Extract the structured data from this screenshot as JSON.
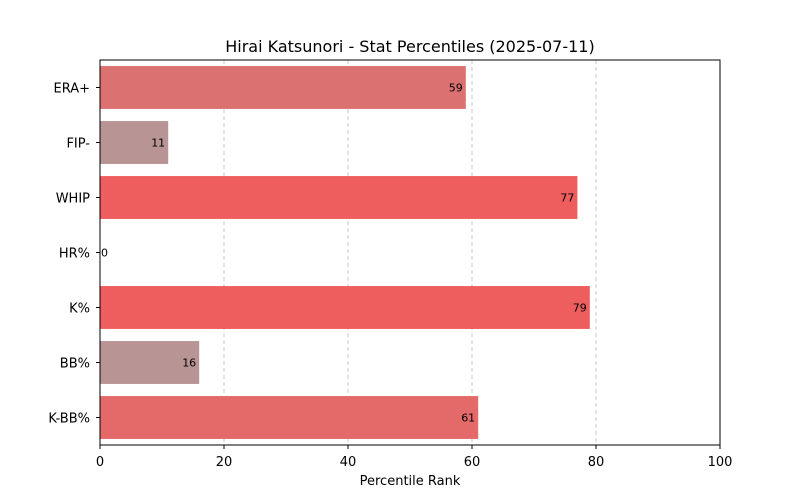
{
  "chart_data": {
    "type": "bar",
    "orientation": "horizontal",
    "title": "Hirai Katsunori - Stat Percentiles (2025-07-11)",
    "xlabel": "Percentile Rank",
    "ylabel": "",
    "xlim": [
      0,
      100
    ],
    "xticks": [
      0,
      20,
      40,
      60,
      80,
      100
    ],
    "grid": "vertical-dashed",
    "categories": [
      "ERA+",
      "FIP-",
      "WHIP",
      "HR%",
      "K%",
      "BB%",
      "K-BB%"
    ],
    "values": [
      59,
      11,
      77,
      0,
      79,
      16,
      61
    ],
    "colors": [
      "#db7170",
      "#b89594",
      "#ef5e5e",
      "#b89594",
      "#ef5e5e",
      "#b89594",
      "#e36a69"
    ]
  }
}
